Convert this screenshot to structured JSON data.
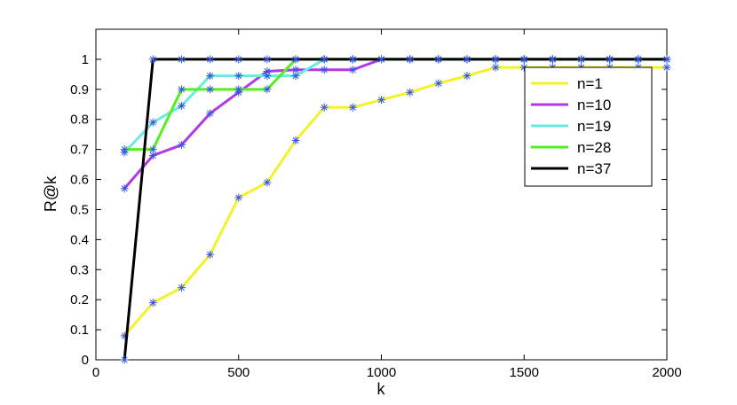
{
  "chart_data": {
    "type": "line",
    "title": "",
    "xlabel": "k",
    "ylabel": "R@k",
    "xlim": [
      0,
      2000
    ],
    "ylim": [
      0,
      1.1
    ],
    "xticks": [
      "0",
      "500",
      "1000",
      "1500",
      "2000"
    ],
    "yticks": [
      "0",
      "0.1",
      "0.2",
      "0.3",
      "0.4",
      "0.5",
      "0.6",
      "0.7",
      "0.8",
      "0.9",
      "1"
    ],
    "legend_position": "top-right",
    "marker_color": "#3355ee",
    "series": [
      {
        "name": "n=1",
        "color": "#f2f22a",
        "x": [
          100,
          200,
          300,
          400,
          500,
          600,
          700,
          800,
          900,
          1000,
          1100,
          1200,
          1300,
          1400,
          1500,
          1600,
          1700,
          1800,
          1900,
          2000
        ],
        "y": [
          0.08,
          0.19,
          0.24,
          0.35,
          0.54,
          0.59,
          0.73,
          0.84,
          0.84,
          0.865,
          0.89,
          0.92,
          0.945,
          0.973,
          0.973,
          0.973,
          0.973,
          0.973,
          0.973,
          0.973
        ]
      },
      {
        "name": "n=10",
        "color": "#b13ae6",
        "x": [
          100,
          200,
          300,
          400,
          500,
          600,
          700,
          800,
          900,
          1000,
          1100,
          1200,
          1300,
          1400,
          1500,
          1600,
          1700,
          1800,
          1900,
          2000
        ],
        "y": [
          0.57,
          0.68,
          0.715,
          0.82,
          0.89,
          0.96,
          0.965,
          0.965,
          0.965,
          1,
          1,
          1,
          1,
          1,
          1,
          1,
          1,
          1,
          1,
          1
        ]
      },
      {
        "name": "n=19",
        "color": "#66ece0",
        "x": [
          100,
          200,
          300,
          400,
          500,
          600,
          700,
          800,
          900,
          1000,
          1100,
          1200,
          1300,
          1400,
          1500,
          1600,
          1700,
          1800,
          1900,
          2000
        ],
        "y": [
          0.69,
          0.79,
          0.845,
          0.945,
          0.945,
          0.945,
          0.945,
          1,
          1,
          1,
          1,
          1,
          1,
          1,
          1,
          1,
          1,
          1,
          1,
          1
        ]
      },
      {
        "name": "n=28",
        "color": "#55ee22",
        "x": [
          100,
          200,
          300,
          400,
          500,
          600,
          700,
          800,
          900,
          1000,
          1100,
          1200,
          1300,
          1400,
          1500,
          1600,
          1700,
          1800,
          1900,
          2000
        ],
        "y": [
          0.7,
          0.7,
          0.9,
          0.9,
          0.9,
          0.9,
          1,
          1,
          1,
          1,
          1,
          1,
          1,
          1,
          1,
          1,
          1,
          1,
          1,
          1
        ]
      },
      {
        "name": "n=37",
        "color": "#000000",
        "x": [
          100,
          200,
          300,
          400,
          500,
          600,
          700,
          800,
          900,
          1000,
          1100,
          1200,
          1300,
          1400,
          1500,
          1600,
          1700,
          1800,
          1900,
          2000
        ],
        "y": [
          0,
          1,
          1,
          1,
          1,
          1,
          1,
          1,
          1,
          1,
          1,
          1,
          1,
          1,
          1,
          1,
          1,
          1,
          1,
          1
        ]
      }
    ]
  }
}
